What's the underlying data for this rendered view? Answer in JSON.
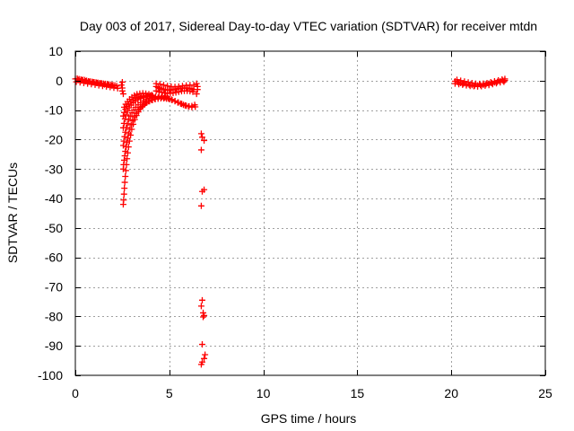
{
  "chart_data": {
    "type": "scatter",
    "title": "Day 003 of 2017, Sidereal Day-to-day VTEC variation (SDTVAR) for receiver mtdn",
    "xlabel": "GPS time / hours",
    "ylabel": "SDTVAR / TECUs",
    "xlim": [
      0,
      25
    ],
    "ylim": [
      -100,
      10
    ],
    "xticks": [
      0,
      5,
      10,
      15,
      20,
      25
    ],
    "yticks": [
      10,
      0,
      -10,
      -20,
      -30,
      -40,
      -50,
      -60,
      -70,
      -80,
      -90,
      -100
    ],
    "grid": true,
    "marker": "+",
    "colors": {
      "series": "#ff0000",
      "grid": "#a0a0a0",
      "axis": "#000000"
    },
    "series": [
      {
        "name": "SDTVAR",
        "points": [
          [
            0.0,
            0.6
          ],
          [
            0.1,
            0.7
          ],
          [
            0.2,
            0.5
          ],
          [
            0.3,
            0.4
          ],
          [
            0.4,
            0.3
          ],
          [
            0.5,
            0.2
          ],
          [
            0.6,
            0.0
          ],
          [
            0.7,
            -0.2
          ],
          [
            0.8,
            -0.3
          ],
          [
            0.9,
            -0.4
          ],
          [
            1.0,
            -0.5
          ],
          [
            1.1,
            -0.6
          ],
          [
            1.2,
            -0.7
          ],
          [
            1.3,
            -0.8
          ],
          [
            1.4,
            -0.9
          ],
          [
            1.5,
            -1.0
          ],
          [
            1.6,
            -1.1
          ],
          [
            1.7,
            -1.2
          ],
          [
            1.8,
            -1.3
          ],
          [
            1.9,
            -1.4
          ],
          [
            2.0,
            -1.5
          ],
          [
            2.1,
            -1.6
          ],
          [
            2.2,
            -1.8
          ],
          [
            0.05,
            -0.4
          ],
          [
            0.25,
            -0.6
          ],
          [
            0.45,
            -0.8
          ],
          [
            0.65,
            -1.0
          ],
          [
            0.85,
            -1.2
          ],
          [
            1.05,
            -1.4
          ],
          [
            1.25,
            -1.6
          ],
          [
            1.45,
            -1.8
          ],
          [
            1.65,
            -2.0
          ],
          [
            1.85,
            -2.2
          ],
          [
            2.05,
            -2.4
          ],
          [
            2.25,
            -2.6
          ],
          [
            0.15,
            0.2
          ],
          [
            0.35,
            0.1
          ],
          [
            0.55,
            -0.2
          ],
          [
            0.75,
            -0.4
          ],
          [
            0.95,
            -0.6
          ],
          [
            1.15,
            -0.8
          ],
          [
            1.35,
            -1.0
          ],
          [
            1.55,
            -1.3
          ],
          [
            1.75,
            -1.5
          ],
          [
            1.95,
            -1.7
          ],
          [
            2.45,
            -1.5
          ],
          [
            2.5,
            -2.5
          ],
          [
            2.5,
            -3.5
          ],
          [
            2.55,
            -4.5
          ],
          [
            2.5,
            -0.5
          ],
          [
            2.55,
            -42.0
          ],
          [
            2.57,
            -40.5
          ],
          [
            2.59,
            -38.5
          ],
          [
            2.61,
            -36.5
          ],
          [
            2.63,
            -34.5
          ],
          [
            2.66,
            -32.5
          ],
          [
            2.69,
            -30.5
          ],
          [
            2.72,
            -28.5
          ],
          [
            2.75,
            -26.5
          ],
          [
            2.79,
            -24.5
          ],
          [
            2.83,
            -22.5
          ],
          [
            2.88,
            -20.5
          ],
          [
            2.94,
            -18.5
          ],
          [
            3.0,
            -16.5
          ],
          [
            3.08,
            -14.8
          ],
          [
            3.16,
            -13.2
          ],
          [
            3.25,
            -11.8
          ],
          [
            3.35,
            -10.6
          ],
          [
            3.45,
            -9.6
          ],
          [
            3.56,
            -8.8
          ],
          [
            3.68,
            -8.1
          ],
          [
            3.8,
            -7.5
          ],
          [
            3.95,
            -7.0
          ],
          [
            4.1,
            -6.6
          ],
          [
            4.25,
            -6.3
          ],
          [
            4.4,
            -6.1
          ],
          [
            4.55,
            -6.0
          ],
          [
            4.7,
            -6.0
          ],
          [
            4.85,
            -6.1
          ],
          [
            5.0,
            -6.3
          ],
          [
            5.15,
            -6.6
          ],
          [
            5.3,
            -7.0
          ],
          [
            5.45,
            -7.4
          ],
          [
            5.6,
            -7.8
          ],
          [
            5.75,
            -8.2
          ],
          [
            5.9,
            -8.5
          ],
          [
            6.05,
            -8.7
          ],
          [
            6.2,
            -8.6
          ],
          [
            6.35,
            -8.2
          ],
          [
            2.55,
            -30.0
          ],
          [
            2.57,
            -28.5
          ],
          [
            2.6,
            -27.0
          ],
          [
            2.63,
            -25.5
          ],
          [
            2.66,
            -24.0
          ],
          [
            2.7,
            -22.5
          ],
          [
            2.74,
            -21.0
          ],
          [
            2.79,
            -19.5
          ],
          [
            2.84,
            -18.0
          ],
          [
            2.9,
            -16.5
          ],
          [
            2.97,
            -15.0
          ],
          [
            3.05,
            -13.6
          ],
          [
            3.14,
            -12.3
          ],
          [
            3.24,
            -11.1
          ],
          [
            3.35,
            -10.0
          ],
          [
            3.47,
            -9.1
          ],
          [
            3.6,
            -8.3
          ],
          [
            3.74,
            -7.6
          ],
          [
            3.89,
            -7.0
          ],
          [
            4.05,
            -6.5
          ],
          [
            4.22,
            -6.1
          ],
          [
            4.4,
            -5.8
          ],
          [
            4.58,
            -5.7
          ],
          [
            4.76,
            -5.8
          ],
          [
            4.94,
            -6.0
          ],
          [
            5.12,
            -6.4
          ],
          [
            5.3,
            -6.9
          ],
          [
            5.48,
            -7.4
          ],
          [
            5.66,
            -7.9
          ],
          [
            5.84,
            -8.4
          ],
          [
            6.02,
            -8.8
          ],
          [
            6.2,
            -9.0
          ],
          [
            6.38,
            -8.9
          ],
          [
            2.55,
            -22.0
          ],
          [
            2.58,
            -20.5
          ],
          [
            2.62,
            -19.0
          ],
          [
            2.66,
            -17.5
          ],
          [
            2.71,
            -16.0
          ],
          [
            2.77,
            -14.6
          ],
          [
            2.84,
            -13.2
          ],
          [
            2.92,
            -12.0
          ],
          [
            3.01,
            -10.9
          ],
          [
            3.11,
            -9.9
          ],
          [
            3.22,
            -9.0
          ],
          [
            3.34,
            -8.2
          ],
          [
            3.47,
            -7.5
          ],
          [
            3.61,
            -6.9
          ],
          [
            3.76,
            -6.4
          ],
          [
            3.92,
            -6.0
          ],
          [
            4.09,
            -5.7
          ],
          [
            4.27,
            -5.5
          ],
          [
            4.45,
            -5.4
          ],
          [
            4.63,
            -5.4
          ],
          [
            4.81,
            -5.5
          ],
          [
            2.55,
            -16.0
          ],
          [
            2.59,
            -14.5
          ],
          [
            2.64,
            -13.0
          ],
          [
            2.7,
            -11.6
          ],
          [
            2.78,
            -10.3
          ],
          [
            2.87,
            -9.2
          ],
          [
            2.97,
            -8.3
          ],
          [
            3.08,
            -7.5
          ],
          [
            3.2,
            -6.9
          ],
          [
            3.33,
            -6.4
          ],
          [
            3.47,
            -6.0
          ],
          [
            3.62,
            -5.7
          ],
          [
            3.78,
            -5.5
          ],
          [
            3.95,
            -5.3
          ],
          [
            4.12,
            -5.2
          ],
          [
            2.55,
            -12.0
          ],
          [
            2.6,
            -10.8
          ],
          [
            2.67,
            -9.7
          ],
          [
            2.75,
            -8.7
          ],
          [
            2.85,
            -7.9
          ],
          [
            2.96,
            -7.2
          ],
          [
            3.08,
            -6.6
          ],
          [
            3.21,
            -6.1
          ],
          [
            3.35,
            -5.7
          ],
          [
            3.5,
            -5.4
          ],
          [
            3.66,
            -5.2
          ],
          [
            3.83,
            -5.1
          ],
          [
            4.0,
            -5.0
          ],
          [
            2.6,
            -9.0
          ],
          [
            2.68,
            -8.0
          ],
          [
            2.78,
            -7.1
          ],
          [
            2.89,
            -6.3
          ],
          [
            3.01,
            -5.6
          ],
          [
            3.14,
            -5.0
          ],
          [
            3.28,
            -4.6
          ],
          [
            3.43,
            -4.4
          ],
          [
            3.59,
            -4.3
          ],
          [
            3.75,
            -4.4
          ],
          [
            3.91,
            -4.6
          ],
          [
            4.07,
            -4.9
          ],
          [
            4.3,
            -2.0
          ],
          [
            4.4,
            -2.3
          ],
          [
            4.5,
            -2.6
          ],
          [
            4.6,
            -2.8
          ],
          [
            4.7,
            -3.0
          ],
          [
            4.8,
            -3.1
          ],
          [
            4.9,
            -3.2
          ],
          [
            5.0,
            -3.2
          ],
          [
            5.1,
            -3.1
          ],
          [
            5.2,
            -3.0
          ],
          [
            5.3,
            -2.9
          ],
          [
            5.4,
            -2.8
          ],
          [
            5.5,
            -2.7
          ],
          [
            5.6,
            -2.6
          ],
          [
            5.7,
            -2.5
          ],
          [
            5.8,
            -2.5
          ],
          [
            5.9,
            -2.5
          ],
          [
            6.0,
            -2.6
          ],
          [
            6.1,
            -2.7
          ],
          [
            6.2,
            -2.8
          ],
          [
            6.3,
            -3.0
          ],
          [
            4.3,
            -3.5
          ],
          [
            4.45,
            -3.8
          ],
          [
            4.6,
            -4.0
          ],
          [
            4.75,
            -4.2
          ],
          [
            4.9,
            -4.3
          ],
          [
            5.05,
            -4.3
          ],
          [
            5.2,
            -4.2
          ],
          [
            5.35,
            -4.0
          ],
          [
            5.5,
            -3.8
          ],
          [
            5.65,
            -3.6
          ],
          [
            5.8,
            -3.5
          ],
          [
            5.95,
            -3.5
          ],
          [
            6.1,
            -3.6
          ],
          [
            6.25,
            -3.8
          ],
          [
            4.3,
            -1.0
          ],
          [
            4.5,
            -1.2
          ],
          [
            4.7,
            -1.5
          ],
          [
            4.9,
            -1.8
          ],
          [
            5.1,
            -2.0
          ],
          [
            5.3,
            -2.1
          ],
          [
            5.5,
            -2.0
          ],
          [
            5.7,
            -1.8
          ],
          [
            5.9,
            -1.6
          ],
          [
            6.1,
            -1.5
          ],
          [
            6.3,
            -1.5
          ],
          [
            6.45,
            -1.0
          ],
          [
            6.5,
            -2.0
          ],
          [
            6.5,
            -3.0
          ],
          [
            6.45,
            -4.5
          ],
          [
            6.7,
            -18.0
          ],
          [
            6.75,
            -19.2
          ],
          [
            6.85,
            -20.3
          ],
          [
            6.7,
            -23.5
          ],
          [
            6.85,
            -37.0
          ],
          [
            6.75,
            -37.6
          ],
          [
            6.7,
            -42.5
          ],
          [
            6.75,
            -74.5
          ],
          [
            6.7,
            -76.5
          ],
          [
            6.8,
            -78.8
          ],
          [
            6.85,
            -79.7
          ],
          [
            6.8,
            -80.2
          ],
          [
            6.75,
            -89.5
          ],
          [
            6.9,
            -93.0
          ],
          [
            6.85,
            -94.3
          ],
          [
            6.75,
            -95.5
          ],
          [
            6.7,
            -96.3
          ],
          [
            20.2,
            -0.2
          ],
          [
            20.35,
            -0.5
          ],
          [
            20.5,
            -0.8
          ],
          [
            20.65,
            -1.0
          ],
          [
            20.8,
            -1.2
          ],
          [
            20.95,
            -1.4
          ],
          [
            21.1,
            -1.5
          ],
          [
            21.25,
            -1.6
          ],
          [
            21.4,
            -1.6
          ],
          [
            21.55,
            -1.5
          ],
          [
            21.7,
            -1.4
          ],
          [
            21.85,
            -1.2
          ],
          [
            22.0,
            -1.0
          ],
          [
            22.15,
            -0.8
          ],
          [
            22.3,
            -0.6
          ],
          [
            22.45,
            -0.4
          ],
          [
            22.6,
            -0.2
          ],
          [
            22.75,
            0.0
          ],
          [
            22.85,
            0.1
          ],
          [
            20.2,
            -1.0
          ],
          [
            20.4,
            -1.2
          ],
          [
            20.6,
            -1.4
          ],
          [
            20.8,
            -1.6
          ],
          [
            21.0,
            -1.8
          ],
          [
            21.2,
            -1.9
          ],
          [
            21.4,
            -2.0
          ],
          [
            21.6,
            -1.9
          ],
          [
            21.8,
            -1.7
          ],
          [
            22.0,
            -1.5
          ],
          [
            22.2,
            -1.2
          ],
          [
            22.4,
            -0.9
          ],
          [
            22.6,
            -0.6
          ],
          [
            22.8,
            -0.4
          ],
          [
            20.3,
            0.3
          ],
          [
            20.5,
            0.0
          ],
          [
            20.7,
            -0.3
          ],
          [
            20.9,
            -0.6
          ],
          [
            21.1,
            -0.8
          ],
          [
            21.3,
            -1.0
          ],
          [
            21.5,
            -1.1
          ],
          [
            21.7,
            -1.0
          ],
          [
            21.9,
            -0.8
          ],
          [
            22.1,
            -0.5
          ],
          [
            22.3,
            -0.2
          ],
          [
            22.5,
            0.1
          ],
          [
            22.7,
            0.4
          ],
          [
            22.85,
            0.6
          ]
        ]
      }
    ]
  }
}
